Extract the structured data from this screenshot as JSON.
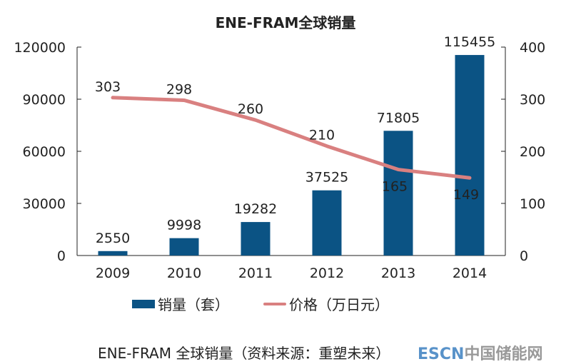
{
  "chart_data": {
    "type": "bar+line",
    "title": "ENE-FRAM全球销量",
    "categories": [
      "2009",
      "2010",
      "2011",
      "2012",
      "2013",
      "2014"
    ],
    "series": [
      {
        "name": "销量（套）",
        "type": "bar",
        "axis": "left",
        "color": "#0b5384",
        "values": [
          2550,
          9998,
          19282,
          37525,
          71805,
          115455
        ]
      },
      {
        "name": "价格（万日元）",
        "type": "line",
        "axis": "right",
        "color": "#d98080",
        "values": [
          303,
          298,
          260,
          210,
          165,
          149
        ]
      }
    ],
    "left_axis": {
      "ylim": [
        0,
        120000
      ],
      "ticks": [
        0,
        30000,
        60000,
        90000,
        120000
      ]
    },
    "right_axis": {
      "ylim": [
        0,
        400
      ],
      "ticks": [
        0,
        100,
        200,
        300,
        400
      ]
    },
    "grid": false,
    "legend_position": "bottom"
  },
  "caption": "ENE-FRAM 全球销量（资料来源：重塑未来）",
  "watermark": {
    "brand": "ESCN",
    "text": "中国储能网"
  }
}
